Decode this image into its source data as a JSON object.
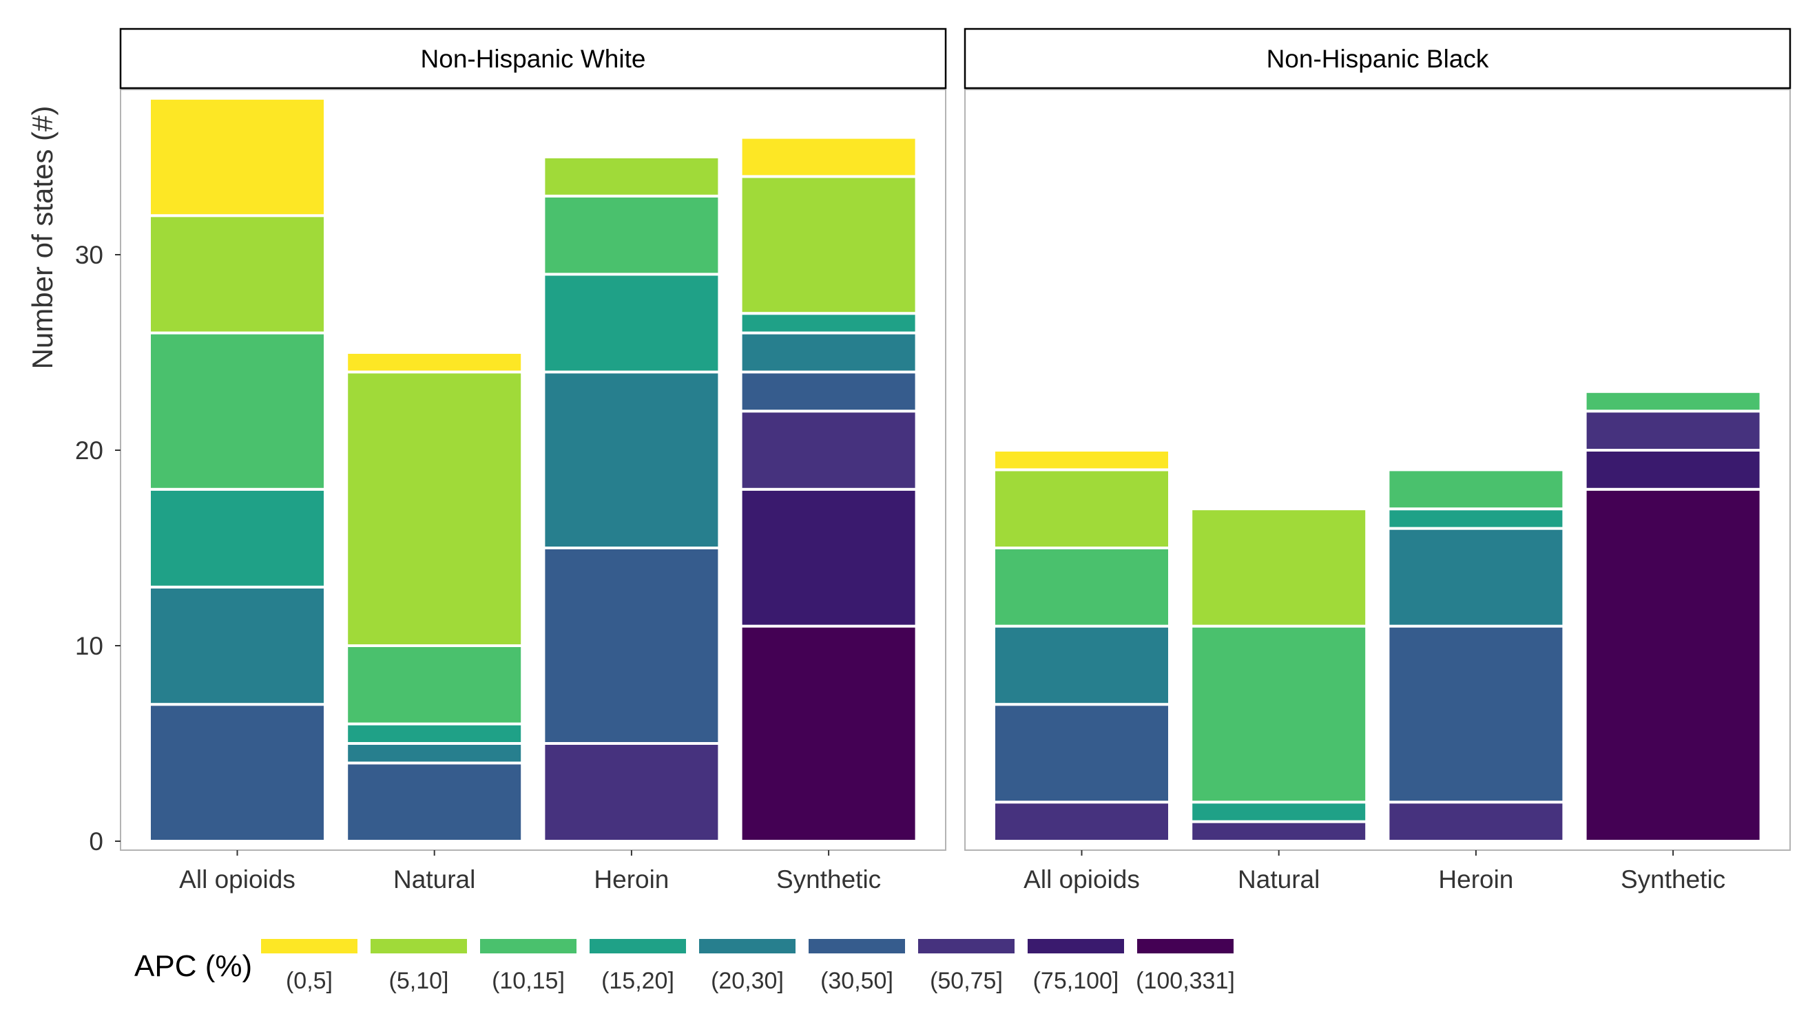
{
  "chart_data": {
    "type": "bar",
    "stacked": true,
    "ylabel": "Number of states (#)",
    "xlabel": "",
    "yticks": [
      0,
      10,
      20,
      30
    ],
    "ylim": [
      0,
      38
    ],
    "grid": false,
    "legend": {
      "position": "bottom",
      "title": "APC (%)",
      "items": [
        {
          "label": "(0,5]",
          "color": "#fde725"
        },
        {
          "label": "(5,10]",
          "color": "#a0da39"
        },
        {
          "label": "(10,15]",
          "color": "#4ac16d"
        },
        {
          "label": "(15,20]",
          "color": "#1fa187"
        },
        {
          "label": "(20,30]",
          "color": "#277f8e"
        },
        {
          "label": "(30,50]",
          "color": "#365c8d"
        },
        {
          "label": "(50,75]",
          "color": "#46327e"
        },
        {
          "label": "(75,100]",
          "color": "#3a1a6e"
        },
        {
          "label": "(100,331]",
          "color": "#440154"
        }
      ]
    },
    "panels": [
      {
        "title": "Non-Hispanic White",
        "categories": [
          "All opioids",
          "Natural",
          "Heroin",
          "Synthetic"
        ],
        "series": [
          {
            "name": "(100,331]",
            "values": [
              0,
              0,
              0,
              11
            ]
          },
          {
            "name": "(75,100]",
            "values": [
              0,
              0,
              0,
              7
            ]
          },
          {
            "name": "(50,75]",
            "values": [
              0,
              0,
              5,
              4
            ]
          },
          {
            "name": "(30,50]",
            "values": [
              7,
              4,
              10,
              2
            ]
          },
          {
            "name": "(20,30]",
            "values": [
              6,
              1,
              9,
              2
            ]
          },
          {
            "name": "(15,20]",
            "values": [
              5,
              1,
              5,
              1
            ]
          },
          {
            "name": "(10,15]",
            "values": [
              8,
              4,
              4,
              0
            ]
          },
          {
            "name": "(5,10]",
            "values": [
              6,
              14,
              2,
              7
            ]
          },
          {
            "name": "(0,5]",
            "values": [
              6,
              1,
              0,
              2
            ]
          }
        ]
      },
      {
        "title": "Non-Hispanic Black",
        "categories": [
          "All opioids",
          "Natural",
          "Heroin",
          "Synthetic"
        ],
        "series": [
          {
            "name": "(100,331]",
            "values": [
              0,
              0,
              0,
              18
            ]
          },
          {
            "name": "(75,100]",
            "values": [
              0,
              0,
              0,
              2
            ]
          },
          {
            "name": "(50,75]",
            "values": [
              2,
              1,
              2,
              2
            ]
          },
          {
            "name": "(30,50]",
            "values": [
              5,
              0,
              9,
              0
            ]
          },
          {
            "name": "(20,30]",
            "values": [
              4,
              0,
              5,
              0
            ]
          },
          {
            "name": "(15,20]",
            "values": [
              0,
              1,
              1,
              0
            ]
          },
          {
            "name": "(10,15]",
            "values": [
              4,
              9,
              2,
              1
            ]
          },
          {
            "name": "(5,10]",
            "values": [
              4,
              6,
              0,
              0
            ]
          },
          {
            "name": "(0,5]",
            "values": [
              1,
              0,
              0,
              0
            ]
          }
        ]
      }
    ]
  }
}
